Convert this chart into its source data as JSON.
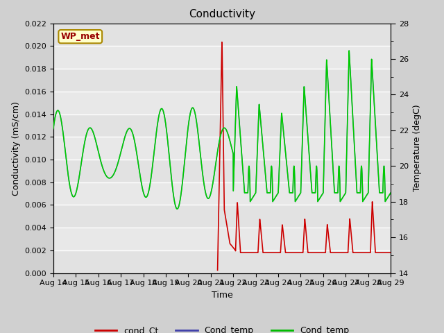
{
  "title": "Conductivity",
  "xlabel": "Time",
  "ylabel_left": "Conductivity (mS/cm)",
  "ylabel_right": "Temperature (degC)",
  "xlim": [
    0,
    15
  ],
  "ylim_left": [
    0.0,
    0.022
  ],
  "ylim_right": [
    14,
    28
  ],
  "x_tick_labels": [
    "Aug 14",
    "Aug 15",
    "Aug 16",
    "Aug 17",
    "Aug 18",
    "Aug 19",
    "Aug 20",
    "Aug 21",
    "Aug 22",
    "Aug 23",
    "Aug 24",
    "Aug 25",
    "Aug 26",
    "Aug 27",
    "Aug 28",
    "Aug 29"
  ],
  "station_label": "WP_met",
  "fig_facecolor": "#d0d0d0",
  "plot_facecolor": "#e8e8e8",
  "grid_color": "#ffffff",
  "legend_colors_rgb": [
    "#cc0000",
    "#4040aa",
    "#00bb00"
  ],
  "title_fontsize": 11,
  "label_fontsize": 9,
  "tick_fontsize": 8
}
